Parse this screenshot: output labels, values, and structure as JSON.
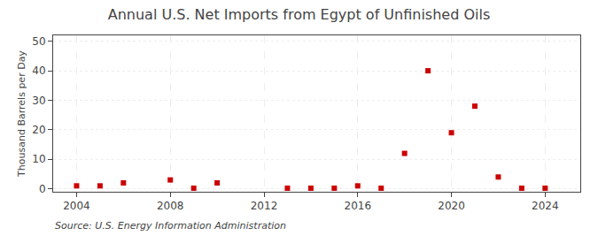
{
  "chart_data": {
    "type": "scatter",
    "title": "Annual U.S. Net Imports from Egypt of Unfinished Oils",
    "ylabel": "Thousand Barrels per Day",
    "annotations": [
      "Source: U.S. Energy Information Administration"
    ],
    "x": [
      2004,
      2005,
      2006,
      2008,
      2009,
      2010,
      2013,
      2014,
      2015,
      2016,
      2017,
      2018,
      2019,
      2020,
      2021,
      2022,
      2023,
      2024
    ],
    "values": [
      1.0,
      1.0,
      2.0,
      3.0,
      0.2,
      2.0,
      0.2,
      0.2,
      0.2,
      1.0,
      0.2,
      12.0,
      40.0,
      19.0,
      28.0,
      4.0,
      0.2,
      0.2
    ],
    "color": "#cc0000",
    "marker": "square",
    "xlim": [
      2003.0,
      2025.5
    ],
    "ylim": [
      -1,
      52
    ],
    "xticks": [
      2004,
      2008,
      2012,
      2016,
      2020,
      2024
    ],
    "yticks": [
      0,
      10,
      20,
      30,
      40,
      50
    ],
    "grid": true
  }
}
